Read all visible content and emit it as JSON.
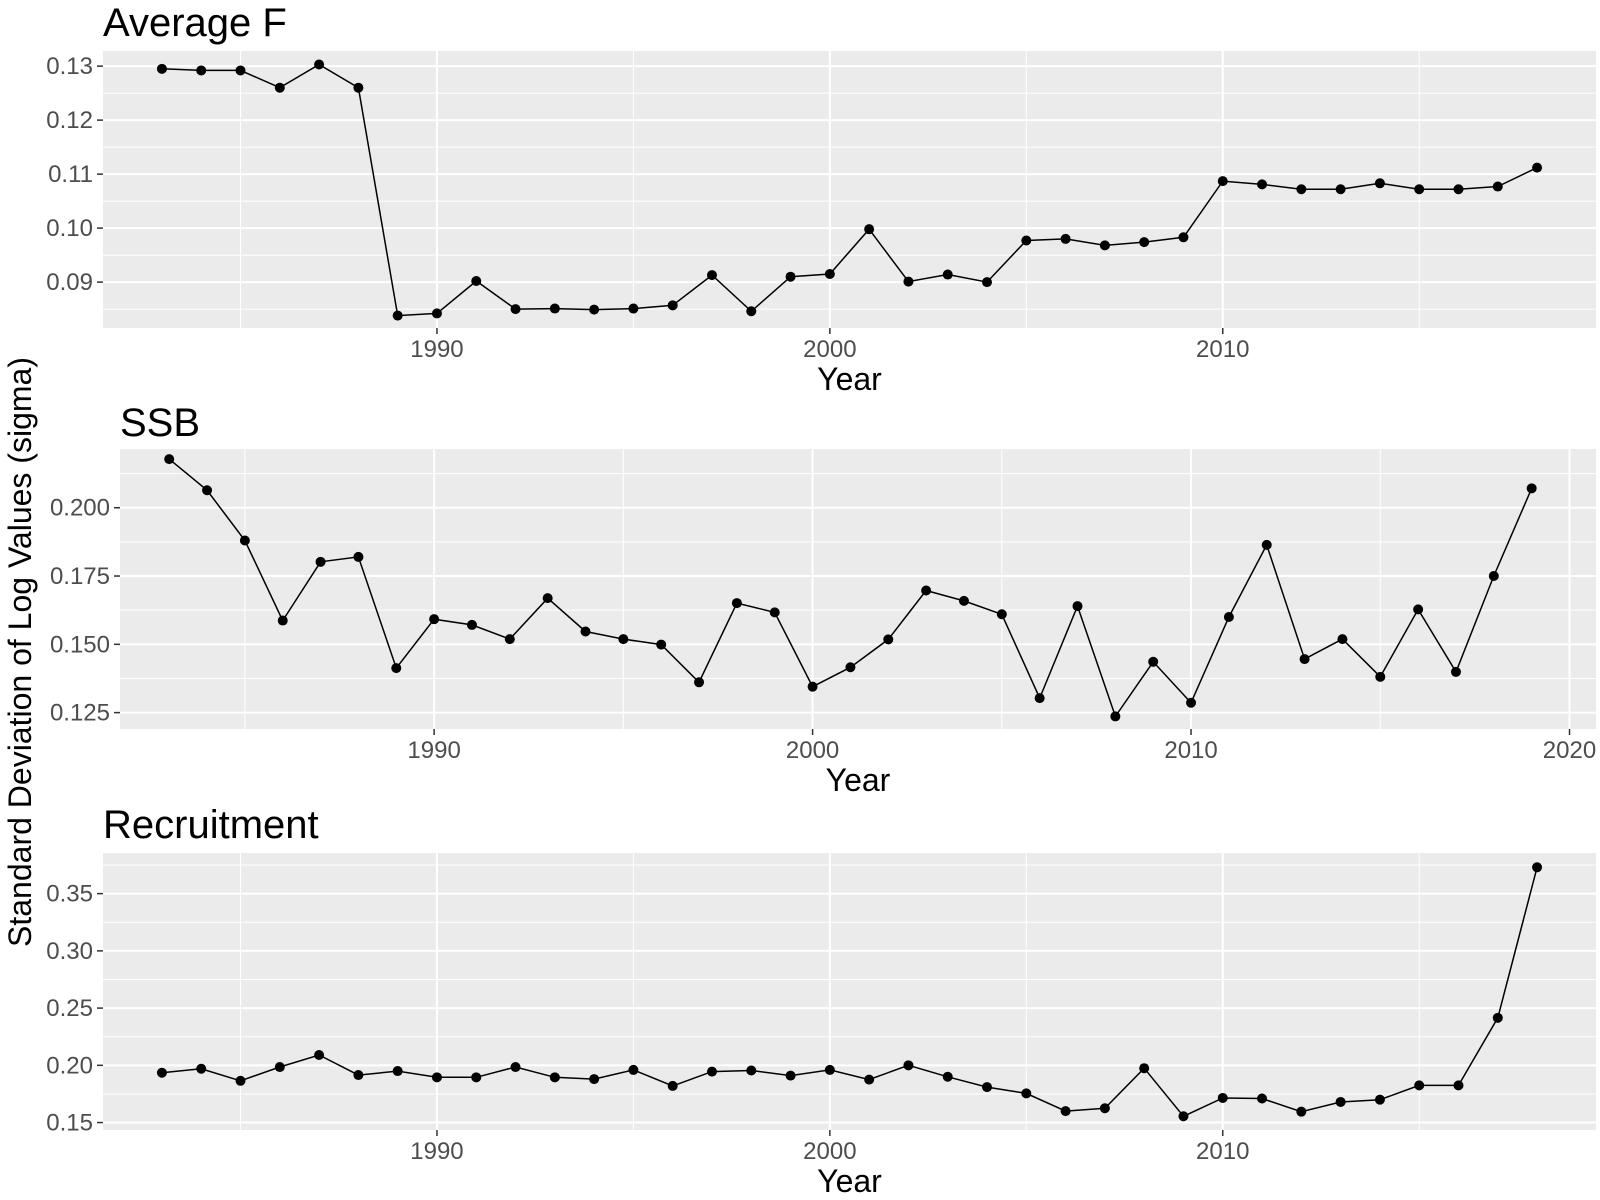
{
  "ylabel": "Standard Deviation of Log Values (sigma)",
  "chart_data": [
    {
      "type": "line",
      "title": "Average F",
      "xlabel": "Year",
      "x_ticks": [
        1990,
        2000,
        2010
      ],
      "y_ticks": [
        0.09,
        0.1,
        0.11,
        0.12,
        0.13
      ],
      "y_tick_labels": [
        "0.09",
        "0.10",
        "0.11",
        "0.12",
        "0.13"
      ],
      "xlim": [
        1981.5,
        2019.5
      ],
      "ylim": [
        0.0815,
        0.1328
      ],
      "series": [
        {
          "x": [
            1983,
            1984,
            1985,
            1986,
            1987,
            1988,
            1989,
            1990,
            1991,
            1992,
            1993,
            1994,
            1995,
            1996,
            1997,
            1998,
            1999,
            2000,
            2001,
            2002,
            2003,
            2004,
            2005,
            2006,
            2007,
            2008,
            2009,
            2010,
            2011,
            2012,
            2013,
            2014,
            2015,
            2016,
            2017,
            2018
          ],
          "y": [
            0.1295,
            0.1292,
            0.1292,
            0.126,
            0.1303,
            0.126,
            0.0838,
            0.0842,
            0.0902,
            0.085,
            0.0851,
            0.0849,
            0.0851,
            0.0857,
            0.0913,
            0.0846,
            0.091,
            0.0915,
            0.0998,
            0.0901,
            0.0914,
            0.09,
            0.0977,
            0.098,
            0.0968,
            0.0974,
            0.0983,
            0.1087,
            0.1081,
            0.1072,
            0.1072,
            0.1083,
            0.1072,
            0.1072,
            0.1077,
            0.1112
          ]
        }
      ],
      "grid": true
    },
    {
      "type": "line",
      "title": "SSB",
      "xlabel": "Year",
      "x_ticks": [
        1990,
        2000,
        2010,
        2020
      ],
      "y_ticks": [
        0.125,
        0.15,
        0.175,
        0.2
      ],
      "y_tick_labels": [
        "0.125",
        "0.150",
        "0.175",
        "0.200"
      ],
      "xlim": [
        1981.7,
        2020.7
      ],
      "ylim": [
        0.119,
        0.2215
      ],
      "series": [
        {
          "x": [
            1983,
            1984,
            1985,
            1986,
            1987,
            1988,
            1989,
            1990,
            1991,
            1992,
            1993,
            1994,
            1995,
            1996,
            1997,
            1998,
            1999,
            2000,
            2001,
            2002,
            2003,
            2004,
            2005,
            2006,
            2007,
            2008,
            2009,
            2010,
            2011,
            2012,
            2013,
            2014,
            2015,
            2016,
            2017,
            2018,
            2019
          ],
          "y": [
            0.2178,
            0.2064,
            0.188,
            0.1587,
            0.1802,
            0.182,
            0.1413,
            0.1592,
            0.1571,
            0.1519,
            0.1669,
            0.1547,
            0.1519,
            0.1499,
            0.1361,
            0.1651,
            0.1617,
            0.1345,
            0.1416,
            0.1518,
            0.1697,
            0.1659,
            0.161,
            0.1303,
            0.164,
            0.1236,
            0.1436,
            0.1286,
            0.16,
            0.1864,
            0.1446,
            0.1519,
            0.1381,
            0.1628,
            0.1399,
            0.175,
            0.2071
          ]
        }
      ],
      "grid": true
    },
    {
      "type": "line",
      "title": "Recruitment",
      "xlabel": "Year",
      "x_ticks": [
        1990,
        2000,
        2010
      ],
      "y_ticks": [
        0.15,
        0.2,
        0.25,
        0.3,
        0.35
      ],
      "y_tick_labels": [
        "0.15",
        "0.20",
        "0.25",
        "0.30",
        "0.35"
      ],
      "xlim": [
        1981.5,
        2019.5
      ],
      "ylim": [
        0.1435,
        0.3855
      ],
      "series": [
        {
          "x": [
            1983,
            1984,
            1985,
            1986,
            1987,
            1988,
            1989,
            1990,
            1991,
            1992,
            1993,
            1994,
            1995,
            1996,
            1997,
            1998,
            1999,
            2000,
            2001,
            2002,
            2003,
            2004,
            2005,
            2006,
            2007,
            2008,
            2009,
            2010,
            2011,
            2012,
            2013,
            2014,
            2015,
            2016,
            2017,
            2018
          ],
          "y": [
            0.1935,
            0.197,
            0.1865,
            0.1985,
            0.209,
            0.1915,
            0.195,
            0.1895,
            0.1895,
            0.1985,
            0.1895,
            0.188,
            0.196,
            0.182,
            0.1945,
            0.1955,
            0.191,
            0.196,
            0.1875,
            0.2,
            0.19,
            0.181,
            0.1755,
            0.16,
            0.1625,
            0.1975,
            0.1555,
            0.1715,
            0.171,
            0.1595,
            0.168,
            0.17,
            0.1825,
            0.1825,
            0.2415,
            0.373
          ]
        }
      ],
      "grid": true
    }
  ]
}
